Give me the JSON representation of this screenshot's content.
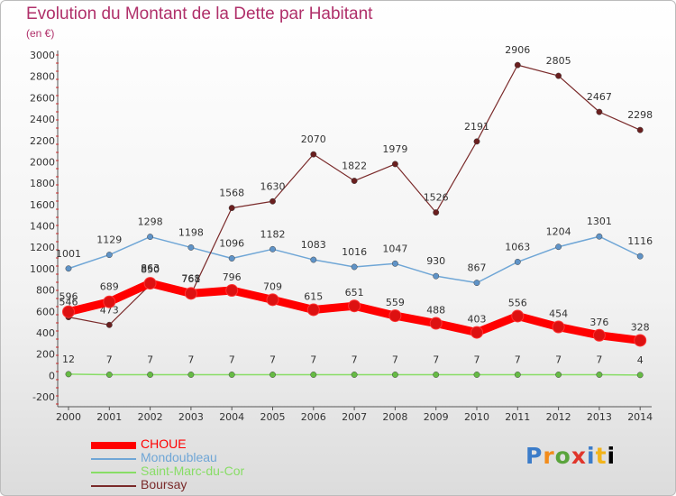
{
  "title": "Evolution du Montant de la Dette par Habitant",
  "subtitle": "(en €)",
  "logo": "Proxiti",
  "chart_data": {
    "type": "line",
    "x": [
      "2000",
      "2001",
      "2002",
      "2003",
      "2004",
      "2005",
      "2006",
      "2007",
      "2008",
      "2009",
      "2010",
      "2011",
      "2012",
      "2013",
      "2014"
    ],
    "ylim": [
      -200,
      3000
    ],
    "yticks": [
      -200,
      0,
      200,
      400,
      600,
      800,
      1000,
      1200,
      1400,
      1600,
      1800,
      2000,
      2200,
      2400,
      2600,
      2800,
      3000
    ],
    "grid": false,
    "legend_position": "bottom-left",
    "series": [
      {
        "name": "CHOUE",
        "color": "#ff0000",
        "marker": "#dd1111",
        "width": 9,
        "values": [
          596,
          689,
          863,
          768,
          796,
          709,
          615,
          651,
          559,
          488,
          403,
          556,
          454,
          376,
          328
        ]
      },
      {
        "name": "Mondoubleau",
        "color": "#6fa6d6",
        "marker": "#5f93c7",
        "width": 1.5,
        "values": [
          1001,
          1129,
          1298,
          1198,
          1096,
          1182,
          1083,
          1016,
          1047,
          930,
          867,
          1063,
          1204,
          1301,
          1116
        ]
      },
      {
        "name": "Saint-Marc-du-Cor",
        "color": "#88dd66",
        "marker": "#66bb44",
        "width": 1.5,
        "values": [
          12,
          7,
          7,
          7,
          7,
          7,
          7,
          7,
          7,
          7,
          7,
          7,
          7,
          7,
          4
        ]
      },
      {
        "name": "Boursay",
        "color": "#7a2a2a",
        "marker": "#6a1f1f",
        "width": 1.2,
        "values": [
          546,
          473,
          850,
          761,
          1568,
          1630,
          2070,
          1822,
          1979,
          1526,
          2191,
          2906,
          2805,
          2467,
          2298
        ]
      }
    ]
  }
}
